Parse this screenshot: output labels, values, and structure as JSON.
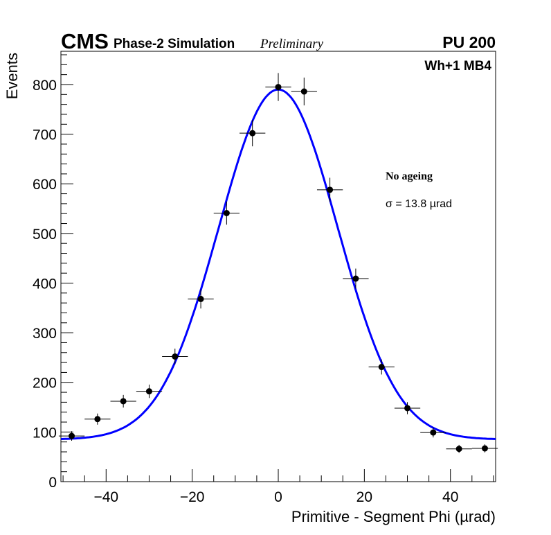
{
  "chart_data": {
    "type": "scatter",
    "title_cms": "CMS",
    "title_sub": "Phase-2 Simulation",
    "title_prelim": "Preliminary",
    "pileup": "PU 200",
    "station": "Wh+1 MB4",
    "legend_label": "No ageing",
    "sigma_label": "σ = 13.8  µrad",
    "xlabel": "Primitive - Segment Phi (µrad)",
    "ylabel": "Events",
    "xlim": [
      -50.5,
      50.5
    ],
    "ylim": [
      0,
      867
    ],
    "xticks": [
      -40,
      -20,
      0,
      20,
      40
    ],
    "xtick_labels": [
      "−40",
      "−20",
      "0",
      "20",
      "40"
    ],
    "yticks": [
      0,
      100,
      200,
      300,
      400,
      500,
      600,
      700,
      800
    ],
    "ytick_labels": [
      "0",
      "100",
      "200",
      "300",
      "400",
      "500",
      "600",
      "700",
      "800"
    ],
    "x": [
      -48,
      -42,
      -36,
      -30,
      -24,
      -18,
      -12,
      -6,
      0,
      6,
      12,
      18,
      24,
      30,
      36,
      42,
      48
    ],
    "values": [
      92,
      126,
      162,
      182,
      252,
      368,
      541,
      702,
      795,
      786,
      588,
      409,
      231,
      148,
      99,
      66,
      67
    ],
    "x_error": 3,
    "fit": {
      "function": "gaus+const",
      "amplitude": 705,
      "mean": 0,
      "sigma": 13.8,
      "constant": 85,
      "color": "#0000ff"
    },
    "marker_color": "#000000"
  }
}
